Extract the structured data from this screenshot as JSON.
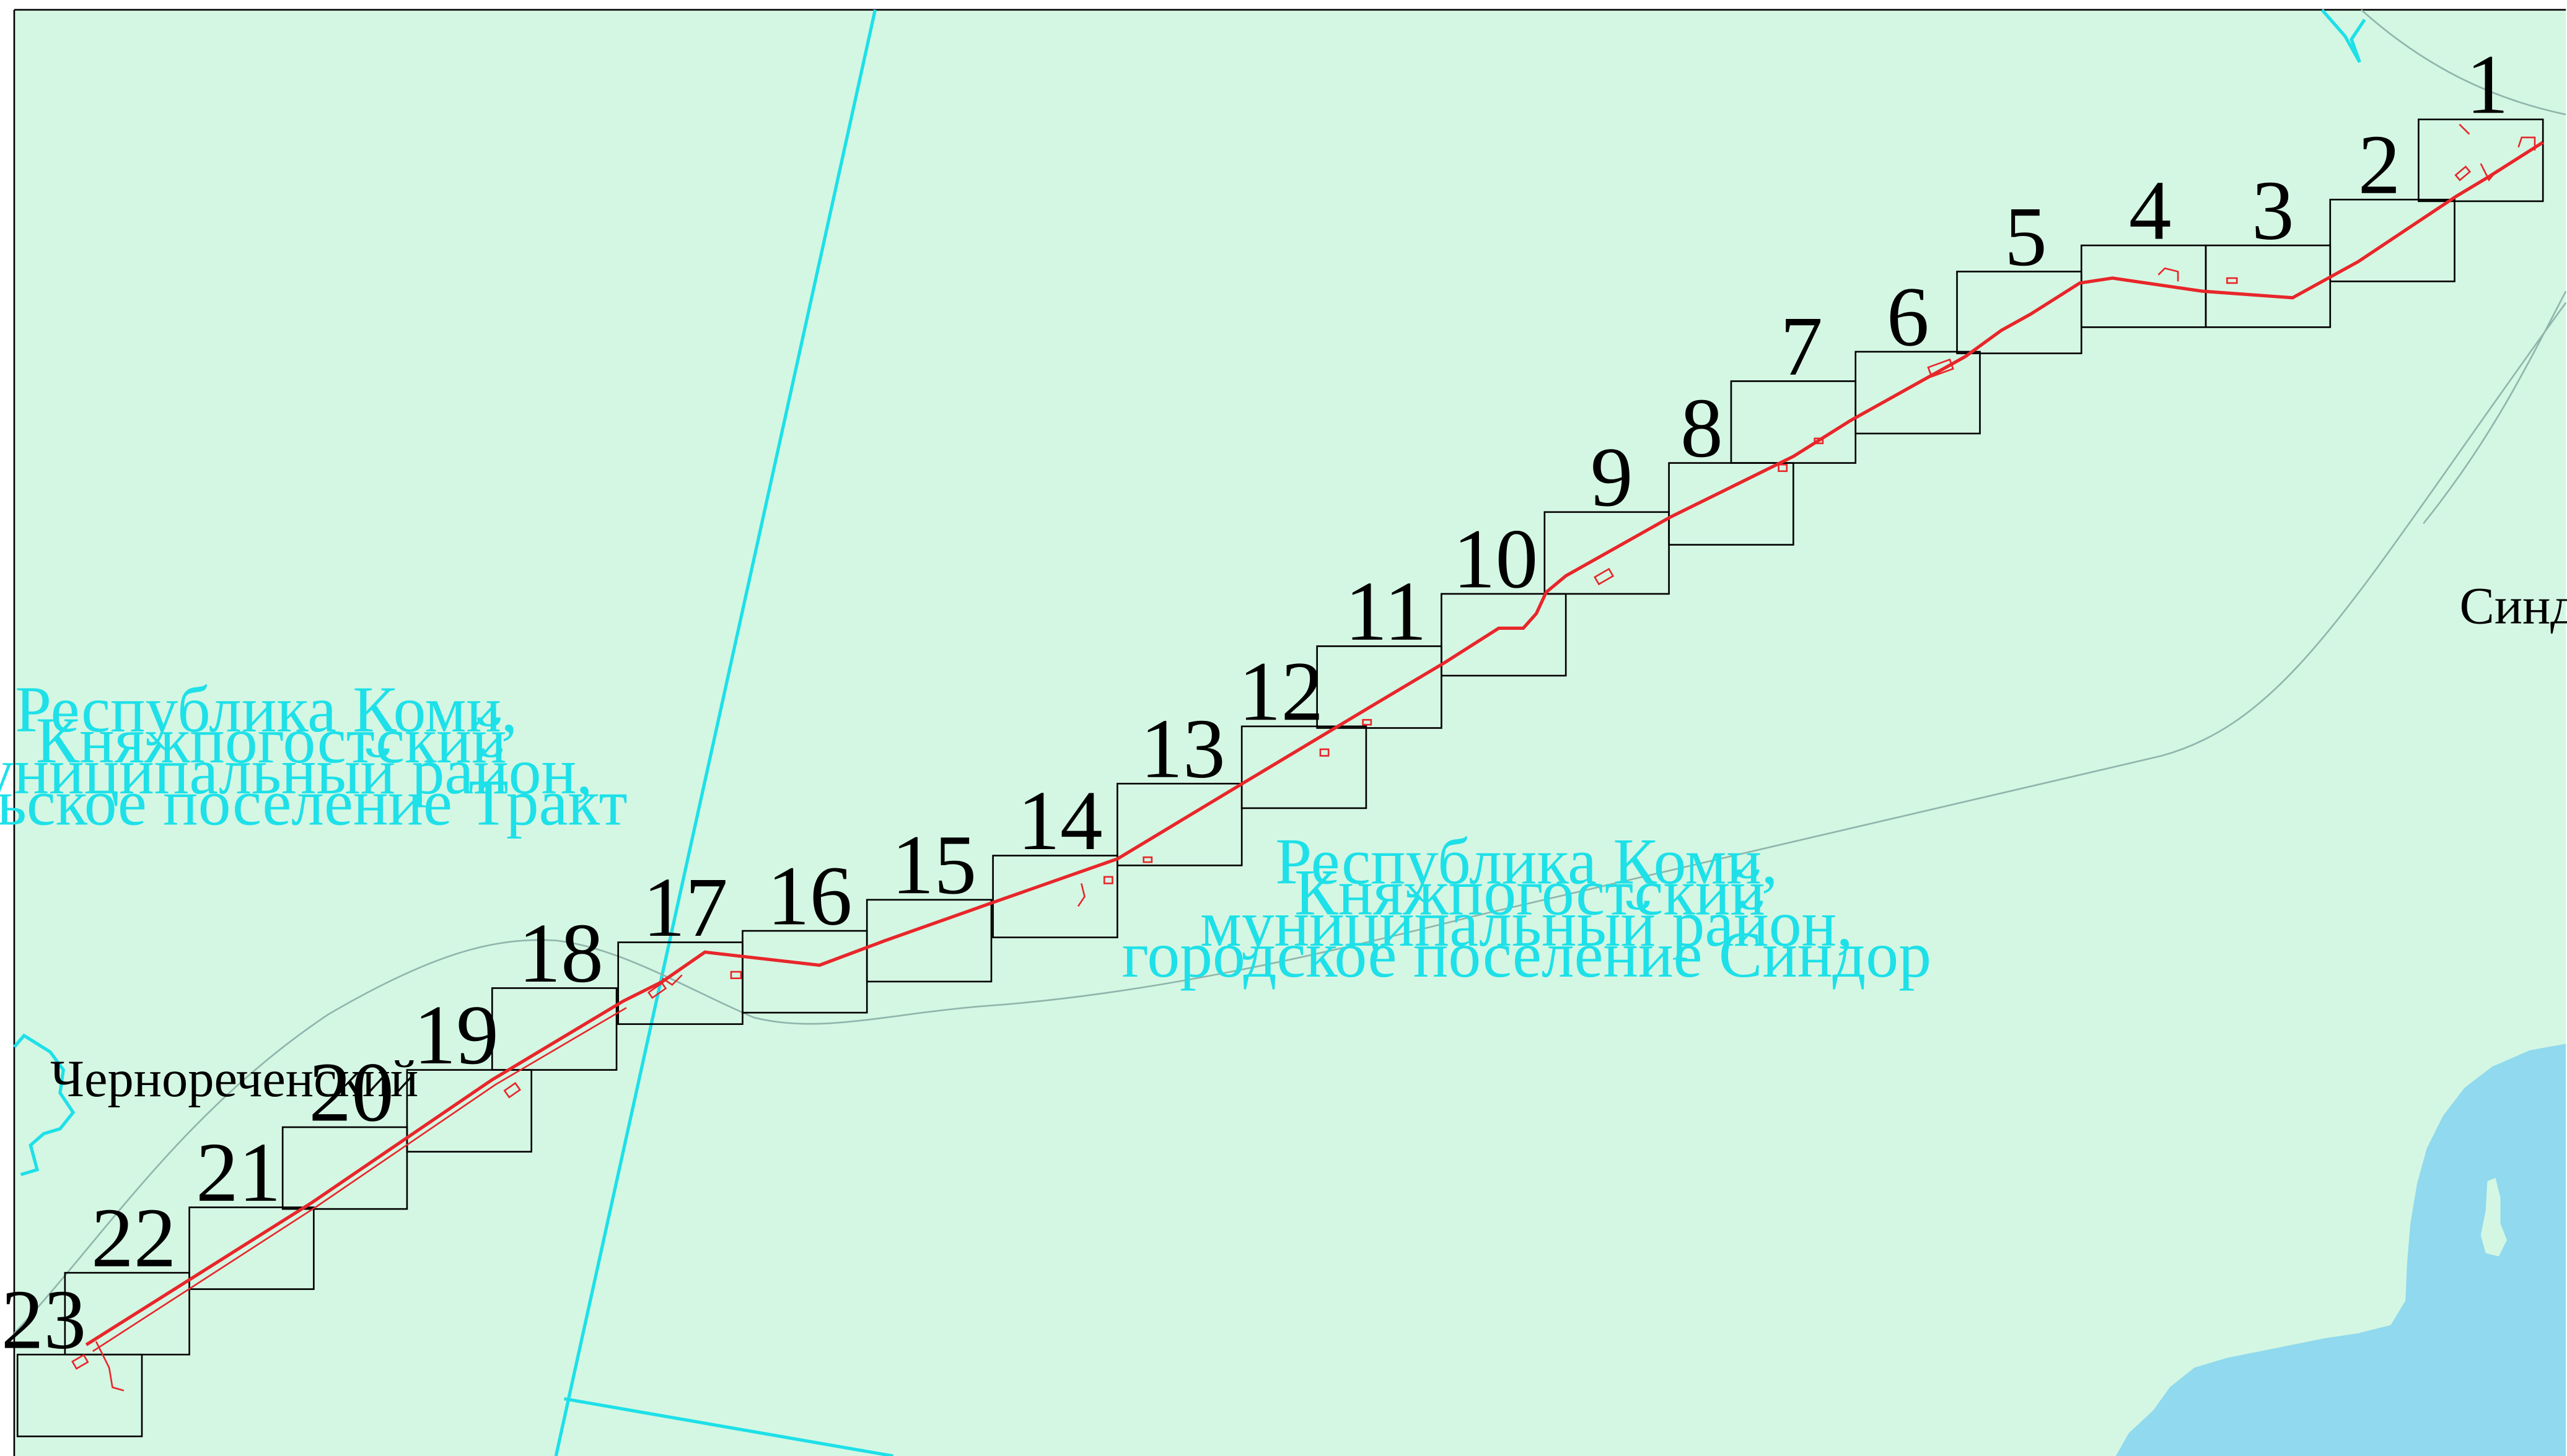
{
  "map": {
    "colors": {
      "land": "#d4f7e3",
      "water": "#90d9ee",
      "boundary": "#1ee0e8",
      "route": "#e8262a",
      "sheet_frame": "#000000",
      "locality_line": "#90b5ac"
    },
    "sheets": [
      {
        "number": "1",
        "label": "1"
      },
      {
        "number": "2",
        "label": "2"
      },
      {
        "number": "3",
        "label": "3"
      },
      {
        "number": "4",
        "label": "4"
      },
      {
        "number": "5",
        "label": "5"
      },
      {
        "number": "6",
        "label": "6"
      },
      {
        "number": "7",
        "label": "7"
      },
      {
        "number": "8",
        "label": "8"
      },
      {
        "number": "9",
        "label": "9"
      },
      {
        "number": "10",
        "label": "10"
      },
      {
        "number": "11",
        "label": "11"
      },
      {
        "number": "12",
        "label": "12"
      },
      {
        "number": "13",
        "label": "13"
      },
      {
        "number": "14",
        "label": "14"
      },
      {
        "number": "15",
        "label": "15"
      },
      {
        "number": "16",
        "label": "16"
      },
      {
        "number": "17",
        "label": "17"
      },
      {
        "number": "18",
        "label": "18"
      },
      {
        "number": "19",
        "label": "19"
      },
      {
        "number": "20",
        "label": "20"
      },
      {
        "number": "21",
        "label": "21"
      },
      {
        "number": "22",
        "label": "22"
      },
      {
        "number": "23",
        "label": "23"
      }
    ],
    "places": {
      "sindor": "Синдор",
      "chernorechensky": "Чернореченский"
    },
    "areas": {
      "trakt": {
        "line1": "Республика Коми,",
        "line2": "Княжпогостский",
        "line3": "муниципальный район,",
        "line4": "сельское поселение Тракт"
      },
      "sindor": {
        "line1": "Республика Коми,",
        "line2": "Княжпогостский",
        "line3": "муниципальный район,",
        "line4": "городское поселение Синдор"
      }
    }
  }
}
